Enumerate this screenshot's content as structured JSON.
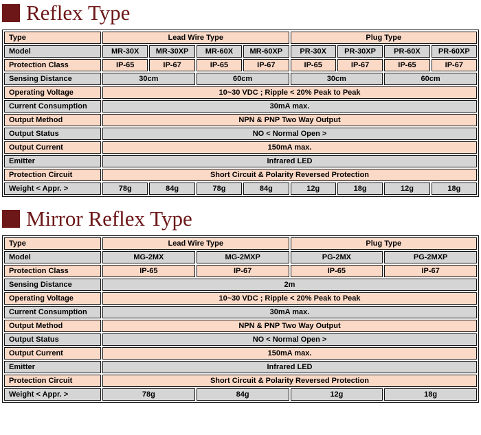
{
  "colors": {
    "title_maroon": "#6d1718",
    "row_peach": "#fbd9c7",
    "row_gray": "#d5d5d5",
    "cell_border": "#141414",
    "page_bg": "#ffffff",
    "text": "#000000"
  },
  "sections": [
    {
      "title": "Reflex Type",
      "table": {
        "data_columns": 8,
        "rows": [
          {
            "label": "Type",
            "shade": "peach",
            "cells": [
              {
                "text": "Lead Wire Type",
                "span": 4
              },
              {
                "text": "Plug Type",
                "span": 4
              }
            ]
          },
          {
            "label": "Model",
            "shade": "gray",
            "cells": [
              {
                "text": "MR-30X",
                "span": 1
              },
              {
                "text": "MR-30XP",
                "span": 1
              },
              {
                "text": "MR-60X",
                "span": 1
              },
              {
                "text": "MR-60XP",
                "span": 1
              },
              {
                "text": "PR-30X",
                "span": 1
              },
              {
                "text": "PR-30XP",
                "span": 1
              },
              {
                "text": "PR-60X",
                "span": 1
              },
              {
                "text": "PR-60XP",
                "span": 1
              }
            ]
          },
          {
            "label": "Protection Class",
            "shade": "peach",
            "cells": [
              {
                "text": "IP-65",
                "span": 1
              },
              {
                "text": "IP-67",
                "span": 1
              },
              {
                "text": "IP-65",
                "span": 1
              },
              {
                "text": "IP-67",
                "span": 1
              },
              {
                "text": "IP-65",
                "span": 1
              },
              {
                "text": "IP-67",
                "span": 1
              },
              {
                "text": "IP-65",
                "span": 1
              },
              {
                "text": "IP-67",
                "span": 1
              }
            ]
          },
          {
            "label": "Sensing Distance",
            "shade": "gray",
            "cells": [
              {
                "text": "30cm",
                "span": 2
              },
              {
                "text": "60cm",
                "span": 2
              },
              {
                "text": "30cm",
                "span": 2
              },
              {
                "text": "60cm",
                "span": 2
              }
            ]
          },
          {
            "label": "Operating Voltage",
            "shade": "peach",
            "cells": [
              {
                "text": "10~30 VDC ; Ripple < 20% Peak to Peak",
                "span": 8
              }
            ]
          },
          {
            "label": "Current Consumption",
            "shade": "gray",
            "cells": [
              {
                "text": "30mA max.",
                "span": 8
              }
            ]
          },
          {
            "label": "Output Method",
            "shade": "peach",
            "cells": [
              {
                "text": "NPN & PNP Two Way Output",
                "span": 8
              }
            ]
          },
          {
            "label": "Output Status",
            "shade": "gray",
            "cells": [
              {
                "text": "NO < Normal Open >",
                "span": 8
              }
            ]
          },
          {
            "label": "Output Current",
            "shade": "peach",
            "cells": [
              {
                "text": "150mA max.",
                "span": 8
              }
            ]
          },
          {
            "label": "Emitter",
            "shade": "gray",
            "cells": [
              {
                "text": "Infrared LED",
                "span": 8
              }
            ]
          },
          {
            "label": "Protection Circuit",
            "shade": "peach",
            "cells": [
              {
                "text": "Short Circuit & Polarity Reversed Protection",
                "span": 8
              }
            ]
          },
          {
            "label": "Weight < Appr. >",
            "shade": "gray",
            "cells": [
              {
                "text": "78g",
                "span": 1
              },
              {
                "text": "84g",
                "span": 1
              },
              {
                "text": "78g",
                "span": 1
              },
              {
                "text": "84g",
                "span": 1
              },
              {
                "text": "12g",
                "span": 1
              },
              {
                "text": "18g",
                "span": 1
              },
              {
                "text": "12g",
                "span": 1
              },
              {
                "text": "18g",
                "span": 1
              }
            ]
          }
        ]
      }
    },
    {
      "title": "Mirror Reflex Type",
      "table": {
        "data_columns": 4,
        "rows": [
          {
            "label": "Type",
            "shade": "peach",
            "cells": [
              {
                "text": "Lead Wire Type",
                "span": 2
              },
              {
                "text": "Plug Type",
                "span": 2
              }
            ]
          },
          {
            "label": "Model",
            "shade": "gray",
            "cells": [
              {
                "text": "MG-2MX",
                "span": 1
              },
              {
                "text": "MG-2MXP",
                "span": 1
              },
              {
                "text": "PG-2MX",
                "span": 1
              },
              {
                "text": "PG-2MXP",
                "span": 1
              }
            ]
          },
          {
            "label": "Protection Class",
            "shade": "peach",
            "cells": [
              {
                "text": "IP-65",
                "span": 1
              },
              {
                "text": "IP-67",
                "span": 1
              },
              {
                "text": "IP-65",
                "span": 1
              },
              {
                "text": "IP-67",
                "span": 1
              }
            ]
          },
          {
            "label": "Sensing Distance",
            "shade": "gray",
            "cells": [
              {
                "text": "2m",
                "span": 4
              }
            ]
          },
          {
            "label": "Operating Voltage",
            "shade": "peach",
            "cells": [
              {
                "text": "10~30 VDC ; Ripple < 20% Peak to Peak",
                "span": 4
              }
            ]
          },
          {
            "label": "Current Consumption",
            "shade": "gray",
            "cells": [
              {
                "text": "30mA max.",
                "span": 4
              }
            ]
          },
          {
            "label": "Output Method",
            "shade": "peach",
            "cells": [
              {
                "text": "NPN & PNP Two Way Output",
                "span": 4
              }
            ]
          },
          {
            "label": "Output Status",
            "shade": "gray",
            "cells": [
              {
                "text": "NO < Normal Open >",
                "span": 4
              }
            ]
          },
          {
            "label": "Output Current",
            "shade": "peach",
            "cells": [
              {
                "text": "150mA max.",
                "span": 4
              }
            ]
          },
          {
            "label": "Emitter",
            "shade": "gray",
            "cells": [
              {
                "text": "Infrared LED",
                "span": 4
              }
            ]
          },
          {
            "label": "Protection Circuit",
            "shade": "peach",
            "cells": [
              {
                "text": "Short Circuit & Polarity Reversed Protection",
                "span": 4
              }
            ]
          },
          {
            "label": "Weight < Appr. >",
            "shade": "gray",
            "cells": [
              {
                "text": "78g",
                "span": 1
              },
              {
                "text": "84g",
                "span": 1
              },
              {
                "text": "12g",
                "span": 1
              },
              {
                "text": "18g",
                "span": 1
              }
            ]
          }
        ]
      }
    }
  ]
}
